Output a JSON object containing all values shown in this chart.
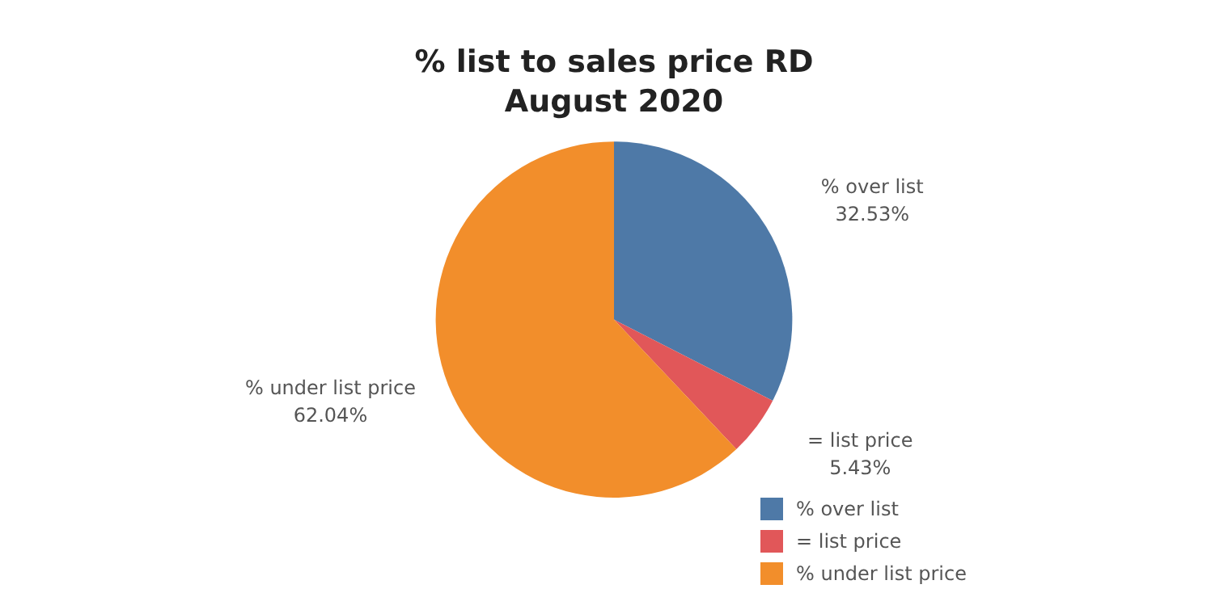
{
  "chart_data": {
    "type": "pie",
    "title": "% list to sales price RD",
    "subtitle": "August 2020",
    "categories": [
      "% over list",
      "= list price",
      "% under list price"
    ],
    "values": [
      32.53,
      5.43,
      62.04
    ],
    "colors": [
      "#4e79a7",
      "#e15759",
      "#f28e2b"
    ],
    "value_labels": [
      "32.53%",
      "5.43%",
      "62.04%"
    ],
    "legend": "bottom right"
  }
}
